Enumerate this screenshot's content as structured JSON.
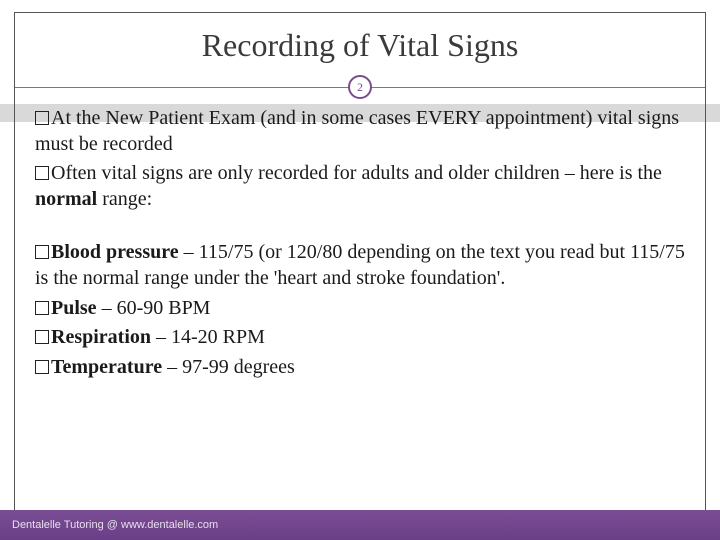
{
  "colors": {
    "background": "#ffffff",
    "title_text": "#3a3a3a",
    "body_text": "#1a1a1a",
    "border": "#555555",
    "divider": "#7a7a7a",
    "badge_border": "#7b4b8f",
    "badge_text": "#7b4b8f",
    "gray_band": "#d9d9d9",
    "footer_bg": "#6b3f86",
    "footer_text": "#e9e0ef"
  },
  "typography": {
    "title_fontsize": 32,
    "body_fontsize": 20,
    "footer_fontsize": 11,
    "font_family": "Georgia, serif"
  },
  "title": "Recording of Vital Signs",
  "page_number": "2",
  "bullets": [
    {
      "runs": [
        {
          "text": "At the New Patient Exam (and in some cases EVERY appointment) vital signs must be recorded",
          "bold": false
        }
      ]
    },
    {
      "runs": [
        {
          "text": "Often vital signs are only recorded for adults and older children – here is the ",
          "bold": false
        },
        {
          "text": "normal",
          "bold": true
        },
        {
          "text": " range:",
          "bold": false
        }
      ]
    }
  ],
  "bullets2": [
    {
      "runs": [
        {
          "text": "Blood pressure",
          "bold": true
        },
        {
          "text": " – 115/75 (or 120/80 depending on the text you read but 115/75 is the normal range under the 'heart and stroke foundation'.",
          "bold": false
        }
      ]
    },
    {
      "runs": [
        {
          "text": "Pulse",
          "bold": true
        },
        {
          "text": " – 60-90 BPM",
          "bold": false
        }
      ]
    },
    {
      "runs": [
        {
          "text": "Respiration",
          "bold": true
        },
        {
          "text": " – 14-20 RPM",
          "bold": false
        }
      ]
    },
    {
      "runs": [
        {
          "text": "Temperature",
          "bold": true
        },
        {
          "text": " – 97-99 degrees",
          "bold": false
        }
      ]
    }
  ],
  "footer": "Dentalelle Tutoring @ www.dentalelle.com"
}
